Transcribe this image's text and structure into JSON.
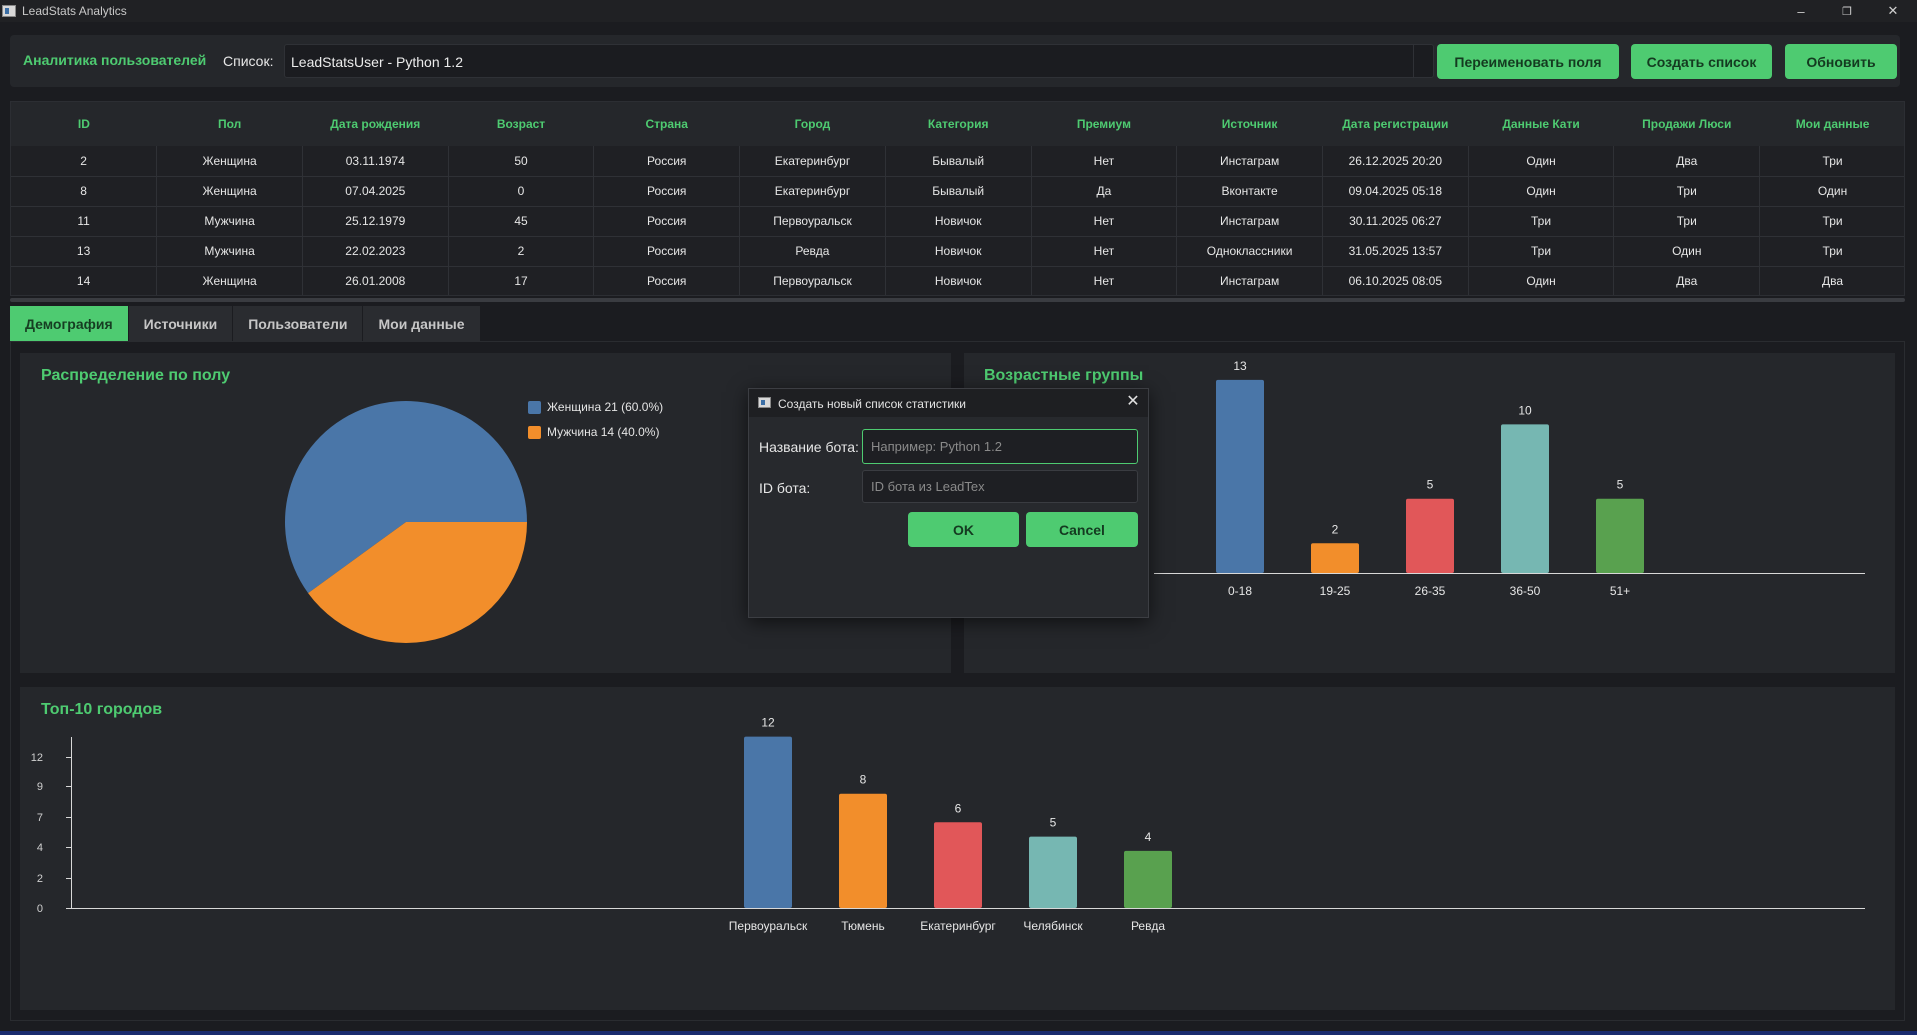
{
  "window": {
    "title": "LeadStats Analytics",
    "controls": {
      "minimize": "–",
      "restore": "❐",
      "close": "✕"
    }
  },
  "toolbar": {
    "title": "Аналитика пользователей",
    "list_label": "Список:",
    "list_value": "LeadStatsUser - Python 1.2",
    "rename_button": "Переименовать поля",
    "create_button": "Создать список",
    "refresh_button": "Обновить"
  },
  "table": {
    "columns": [
      "ID",
      "Пол",
      "Дата рождения",
      "Возраст",
      "Страна",
      "Город",
      "Категория",
      "Премиум",
      "Источник",
      "Дата регистрации",
      "Данные Кати",
      "Продажи Люси",
      "Мои данные"
    ],
    "rows": [
      [
        "2",
        "Женщина",
        "03.11.1974",
        "50",
        "Россия",
        "Екатеринбург",
        "Бывалый",
        "Нет",
        "Инстаграм",
        "26.12.2025 20:20",
        "Один",
        "Два",
        "Три"
      ],
      [
        "8",
        "Женщина",
        "07.04.2025",
        "0",
        "Россия",
        "Екатеринбург",
        "Бывалый",
        "Да",
        "Вконтакте",
        "09.04.2025 05:18",
        "Один",
        "Три",
        "Один"
      ],
      [
        "11",
        "Мужчина",
        "25.12.1979",
        "45",
        "Россия",
        "Первоуральск",
        "Новичок",
        "Нет",
        "Инстаграм",
        "30.11.2025 06:27",
        "Три",
        "Три",
        "Три"
      ],
      [
        "13",
        "Мужчина",
        "22.02.2023",
        "2",
        "Россия",
        "Ревда",
        "Новичок",
        "Нет",
        "Одноклассники",
        "31.05.2025 13:57",
        "Три",
        "Один",
        "Три"
      ],
      [
        "14",
        "Женщина",
        "26.01.2008",
        "17",
        "Россия",
        "Первоуральск",
        "Новичок",
        "Нет",
        "Инстаграм",
        "06.10.2025 08:05",
        "Один",
        "Два",
        "Два"
      ]
    ]
  },
  "tabs": [
    "Демография",
    "Источники",
    "Пользователи",
    "Мои данные"
  ],
  "colors": {
    "accent": "#4ecb71",
    "blue": "#4a76a8",
    "orange": "#f28e2b",
    "red": "#e15759",
    "teal": "#76b7b2",
    "green": "#59a14f"
  },
  "charts": {
    "gender_title": "Распределение по полу",
    "age_title": "Возрастные группы",
    "cities_title": "Топ-10 городов"
  },
  "chart_data": [
    {
      "type": "pie",
      "title": "Распределение по полу",
      "labels": [
        "Женщина 21 (60.0%)",
        "Мужчина 14 (40.0%)"
      ],
      "values": [
        21,
        14
      ],
      "colors": [
        "#4a76a8",
        "#f28e2b"
      ],
      "legend": "top-right"
    },
    {
      "type": "bar",
      "title": "Возрастные группы",
      "categories": [
        "0-18",
        "19-25",
        "26-35",
        "36-50",
        "51+"
      ],
      "values": [
        13,
        2,
        5,
        10,
        5
      ],
      "colors": [
        "#4a76a8",
        "#f28e2b",
        "#e15759",
        "#76b7b2",
        "#59a14f"
      ],
      "ylim": [
        0,
        14
      ]
    },
    {
      "type": "bar",
      "title": "Топ-10 городов",
      "categories": [
        "Первоуральск",
        "Тюмень",
        "Екатеринбург",
        "Челябинск",
        "Ревда"
      ],
      "values": [
        12,
        8,
        6,
        5,
        4
      ],
      "colors": [
        "#4a76a8",
        "#f28e2b",
        "#e15759",
        "#76b7b2",
        "#59a14f"
      ],
      "yticks": [
        "0",
        "2",
        "4",
        "7",
        "9",
        "12"
      ],
      "ylim": [
        0,
        13.3
      ],
      "grid": false
    }
  ],
  "dialog": {
    "title": "Создать новый список статистики",
    "name_label": "Название бота:",
    "name_placeholder": "Например: Python 1.2",
    "id_label": "ID бота:",
    "id_placeholder": "ID бота из LeadTex",
    "ok_button": "OK",
    "cancel_button": "Cancel"
  }
}
